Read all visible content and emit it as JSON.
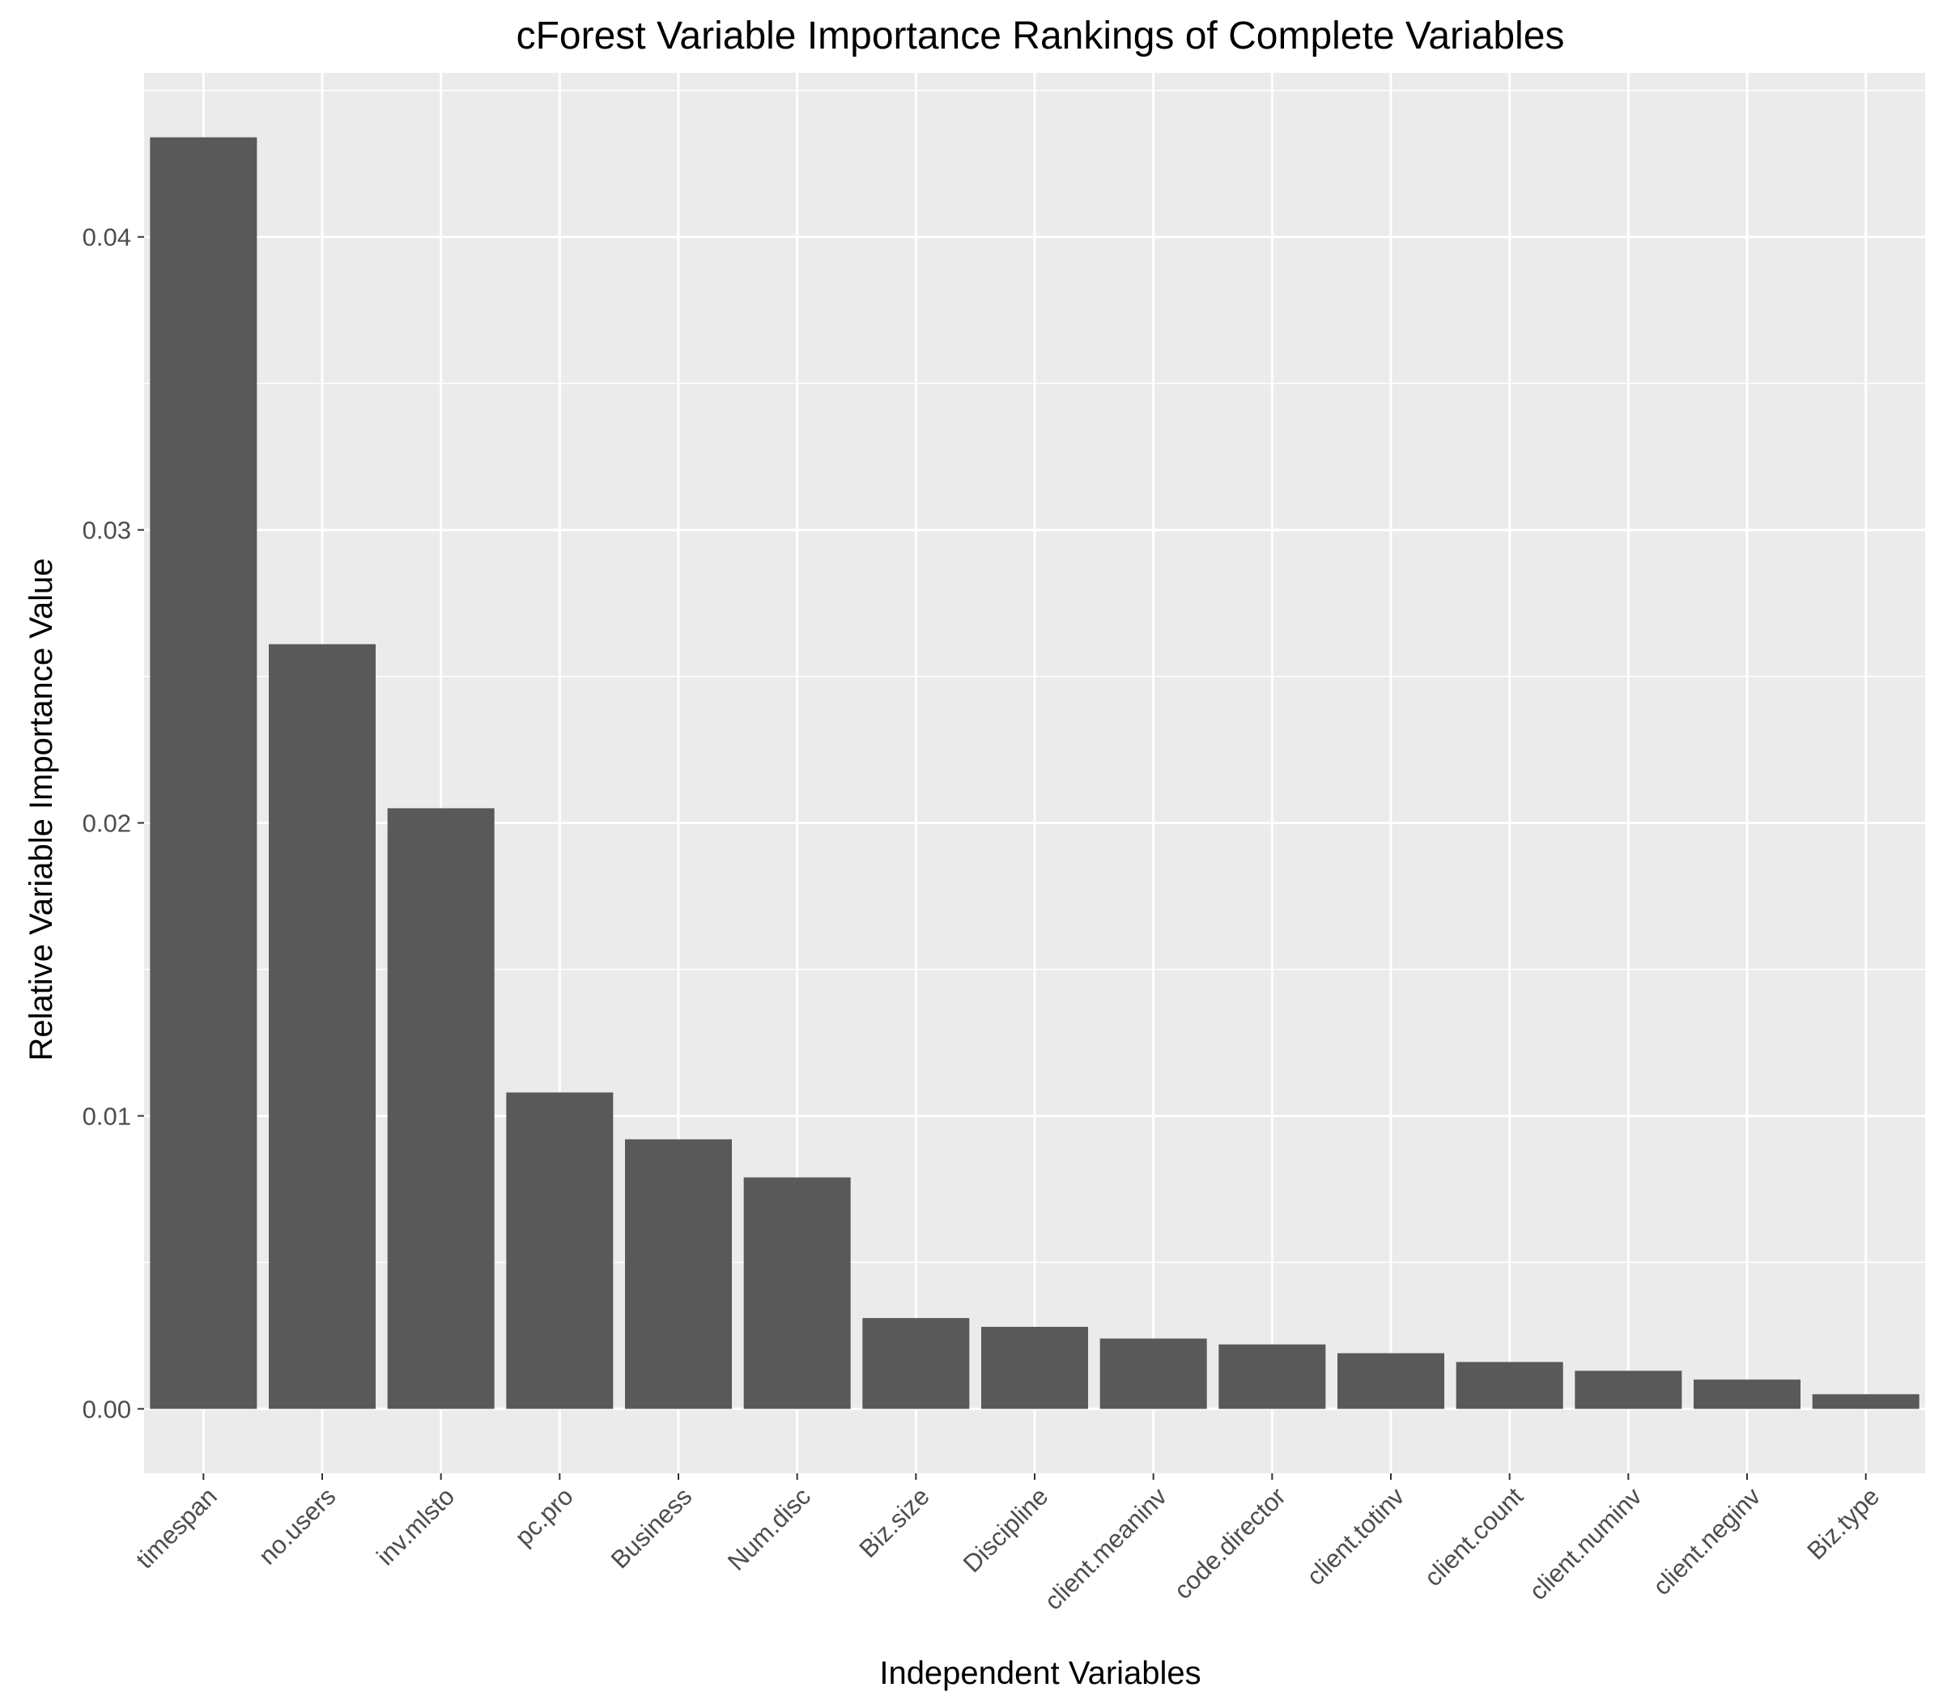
{
  "chart_data": {
    "type": "bar",
    "title": "cForest Variable Importance Rankings of Complete Variables",
    "xlabel": "Independent Variables",
    "ylabel": "Relative Variable Importance Value",
    "categories": [
      "timespan",
      "no.users",
      "inv.mlsto",
      "pc.pro",
      "Business",
      "Num.disc",
      "Biz.size",
      "Discipline",
      "client.meaninv",
      "code.director",
      "client.totinv",
      "client.count",
      "client.numinv",
      "client.neginv",
      "Biz.type"
    ],
    "values": [
      0.0434,
      0.0261,
      0.0205,
      0.0108,
      0.0092,
      0.0079,
      0.0031,
      0.0028,
      0.0024,
      0.0022,
      0.0019,
      0.0016,
      0.0013,
      0.001,
      0.0005
    ],
    "yticks": [
      0.0,
      0.01,
      0.02,
      0.03,
      0.04
    ],
    "ytick_labels": [
      "0.00",
      "0.01",
      "0.02",
      "0.03",
      "0.04"
    ],
    "ylim": [
      -0.0022,
      0.0456
    ],
    "grid": true,
    "legend": "none",
    "colors": {
      "panel_bg": "#ebebeb",
      "grid": "#ffffff",
      "bar": "#595959",
      "tick_text": "#4d4d4d",
      "tick_mark": "#333333"
    }
  }
}
